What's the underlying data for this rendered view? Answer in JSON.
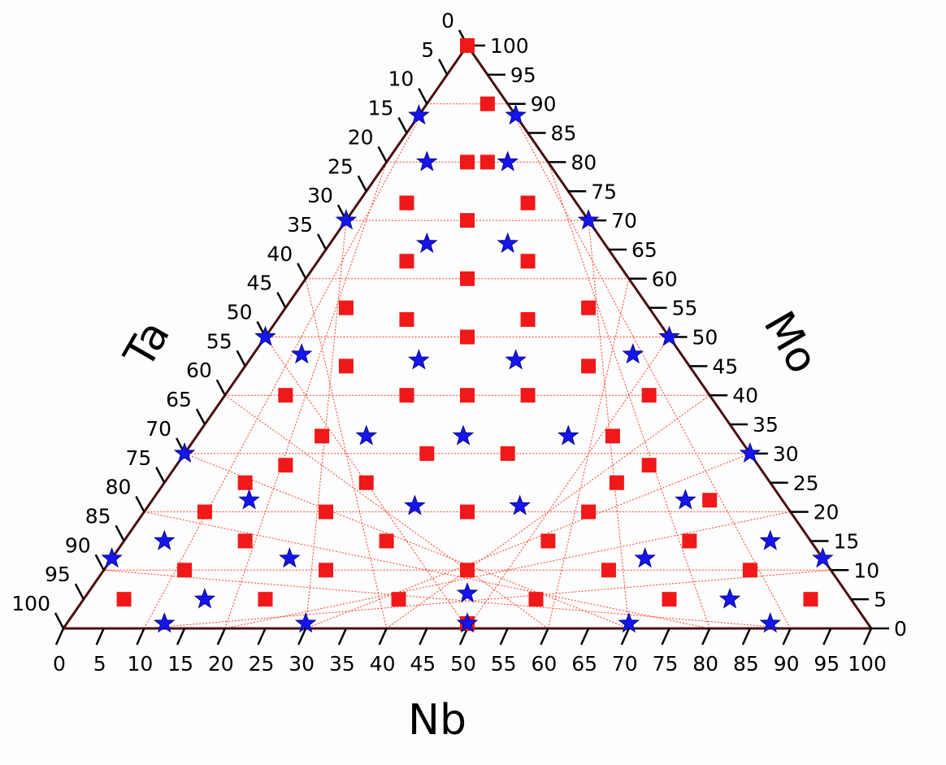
{
  "chart_data": {
    "type": "scatter",
    "subtype": "ternary",
    "title": "",
    "axes": {
      "bottom": {
        "label": "Nb",
        "range": [
          0,
          100
        ]
      },
      "left": {
        "label": "Ta",
        "range": [
          0,
          100
        ]
      },
      "right": {
        "label": "Mo",
        "range": [
          0,
          100
        ]
      }
    },
    "tick_labels": [
      "0",
      "5",
      "10",
      "15",
      "20",
      "25",
      "30",
      "35",
      "40",
      "45",
      "50",
      "55",
      "60",
      "65",
      "70",
      "75",
      "80",
      "85",
      "90",
      "95",
      "100"
    ],
    "grid": {
      "visible": true,
      "step": 10,
      "color": "#ff3b1f",
      "style": "dotted"
    },
    "series": [
      {
        "marker": "square",
        "color": "#f01818",
        "points": [
          {
            "nb": 0,
            "mo": 100
          },
          {
            "nb": 5,
            "mo": 90
          },
          {
            "nb": 5,
            "mo": 80
          },
          {
            "nb": 0,
            "mo": 80
          },
          {
            "nb": 15,
            "mo": 73
          },
          {
            "nb": 0,
            "mo": 70
          },
          {
            "nb": -15,
            "mo": 73
          },
          {
            "nb": 15,
            "mo": 63
          },
          {
            "nb": 0,
            "mo": 60
          },
          {
            "nb": -15,
            "mo": 63
          },
          {
            "nb": 30,
            "mo": 55
          },
          {
            "nb": 15,
            "mo": 53
          },
          {
            "nb": 0,
            "mo": 50
          },
          {
            "nb": -15,
            "mo": 53
          },
          {
            "nb": -30,
            "mo": 55
          },
          {
            "nb": 30,
            "mo": 45
          },
          {
            "nb": -30,
            "mo": 45
          },
          {
            "nb": 45,
            "mo": 40
          },
          {
            "nb": 15,
            "mo": 40
          },
          {
            "nb": 0,
            "mo": 40
          },
          {
            "nb": -15,
            "mo": 40
          },
          {
            "nb": -45,
            "mo": 40
          },
          {
            "nb": 36,
            "mo": 33
          },
          {
            "nb": -36,
            "mo": 33
          },
          {
            "nb": 45,
            "mo": 28
          },
          {
            "nb": 10,
            "mo": 30
          },
          {
            "nb": -10,
            "mo": 30
          },
          {
            "nb": -45,
            "mo": 28
          },
          {
            "nb": 60,
            "mo": 22
          },
          {
            "nb": 37,
            "mo": 25
          },
          {
            "nb": -25,
            "mo": 25
          },
          {
            "nb": -55,
            "mo": 25
          },
          {
            "nb": 30,
            "mo": 20
          },
          {
            "nb": 0,
            "mo": 20
          },
          {
            "nb": -35,
            "mo": 20
          },
          {
            "nb": -65,
            "mo": 20
          },
          {
            "nb": 55,
            "mo": 15
          },
          {
            "nb": 20,
            "mo": 15
          },
          {
            "nb": -20,
            "mo": 15
          },
          {
            "nb": -55,
            "mo": 15
          },
          {
            "nb": 70,
            "mo": 10
          },
          {
            "nb": 35,
            "mo": 10
          },
          {
            "nb": 0,
            "mo": 10
          },
          {
            "nb": -35,
            "mo": 10
          },
          {
            "nb": -70,
            "mo": 10
          },
          {
            "nb": 85,
            "mo": 5
          },
          {
            "nb": 50,
            "mo": 5
          },
          {
            "nb": 17,
            "mo": 5
          },
          {
            "nb": -17,
            "mo": 5
          },
          {
            "nb": -50,
            "mo": 5
          },
          {
            "nb": -85,
            "mo": 5
          },
          {
            "nb": 0,
            "mo": 0
          }
        ]
      },
      {
        "marker": "star",
        "color": "#1515f0",
        "points": [
          {
            "nb": -12,
            "mo": 88
          },
          {
            "nb": 12,
            "mo": 88
          },
          {
            "nb": -10,
            "mo": 80
          },
          {
            "nb": 10,
            "mo": 80
          },
          {
            "nb": -30,
            "mo": 70
          },
          {
            "nb": 30,
            "mo": 70
          },
          {
            "nb": -10,
            "mo": 66
          },
          {
            "nb": 10,
            "mo": 66
          },
          {
            "nb": -50,
            "mo": 50
          },
          {
            "nb": -41,
            "mo": 47
          },
          {
            "nb": -12,
            "mo": 46
          },
          {
            "nb": 12,
            "mo": 46
          },
          {
            "nb": 41,
            "mo": 47
          },
          {
            "nb": 50,
            "mo": 50
          },
          {
            "nb": -70,
            "mo": 30
          },
          {
            "nb": -25,
            "mo": 33
          },
          {
            "nb": -1,
            "mo": 33
          },
          {
            "nb": 25,
            "mo": 33
          },
          {
            "nb": 70,
            "mo": 30
          },
          {
            "nb": -54,
            "mo": 22
          },
          {
            "nb": -13,
            "mo": 21
          },
          {
            "nb": 13,
            "mo": 21
          },
          {
            "nb": 54,
            "mo": 22
          },
          {
            "nb": -88,
            "mo": 12
          },
          {
            "nb": -75,
            "mo": 15
          },
          {
            "nb": -44,
            "mo": 12
          },
          {
            "nb": 44,
            "mo": 12
          },
          {
            "nb": 75,
            "mo": 15
          },
          {
            "nb": 88,
            "mo": 12
          },
          {
            "nb": -65,
            "mo": 5
          },
          {
            "nb": 0,
            "mo": 6
          },
          {
            "nb": 65,
            "mo": 5
          },
          {
            "nb": -75,
            "mo": 0
          },
          {
            "nb": -40,
            "mo": 0
          },
          {
            "nb": 0,
            "mo": 0
          },
          {
            "nb": 40,
            "mo": 0
          },
          {
            "nb": 75,
            "mo": 0
          }
        ]
      }
    ]
  }
}
